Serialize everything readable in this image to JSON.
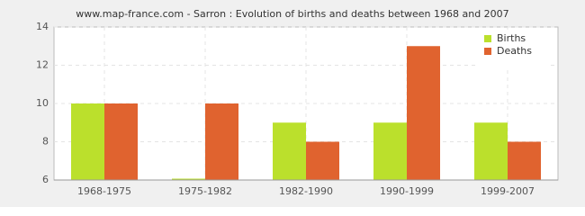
{
  "chart_data": {
    "type": "bar",
    "title": "www.map-france.com - Sarron : Evolution of births and deaths between 1968 and 2007",
    "categories": [
      "1968-1975",
      "1975-1982",
      "1982-1990",
      "1990-1999",
      "1999-2007"
    ],
    "series": [
      {
        "name": "Births",
        "color": "#bbe02c",
        "values": [
          10,
          6,
          9,
          9,
          9
        ]
      },
      {
        "name": "Deaths",
        "color": "#e0632f",
        "values": [
          10,
          10,
          8,
          13,
          8
        ]
      }
    ],
    "ylim": [
      6,
      14
    ],
    "yticks": [
      6,
      8,
      10,
      12,
      14
    ],
    "grid": true,
    "legend": "top-right"
  }
}
